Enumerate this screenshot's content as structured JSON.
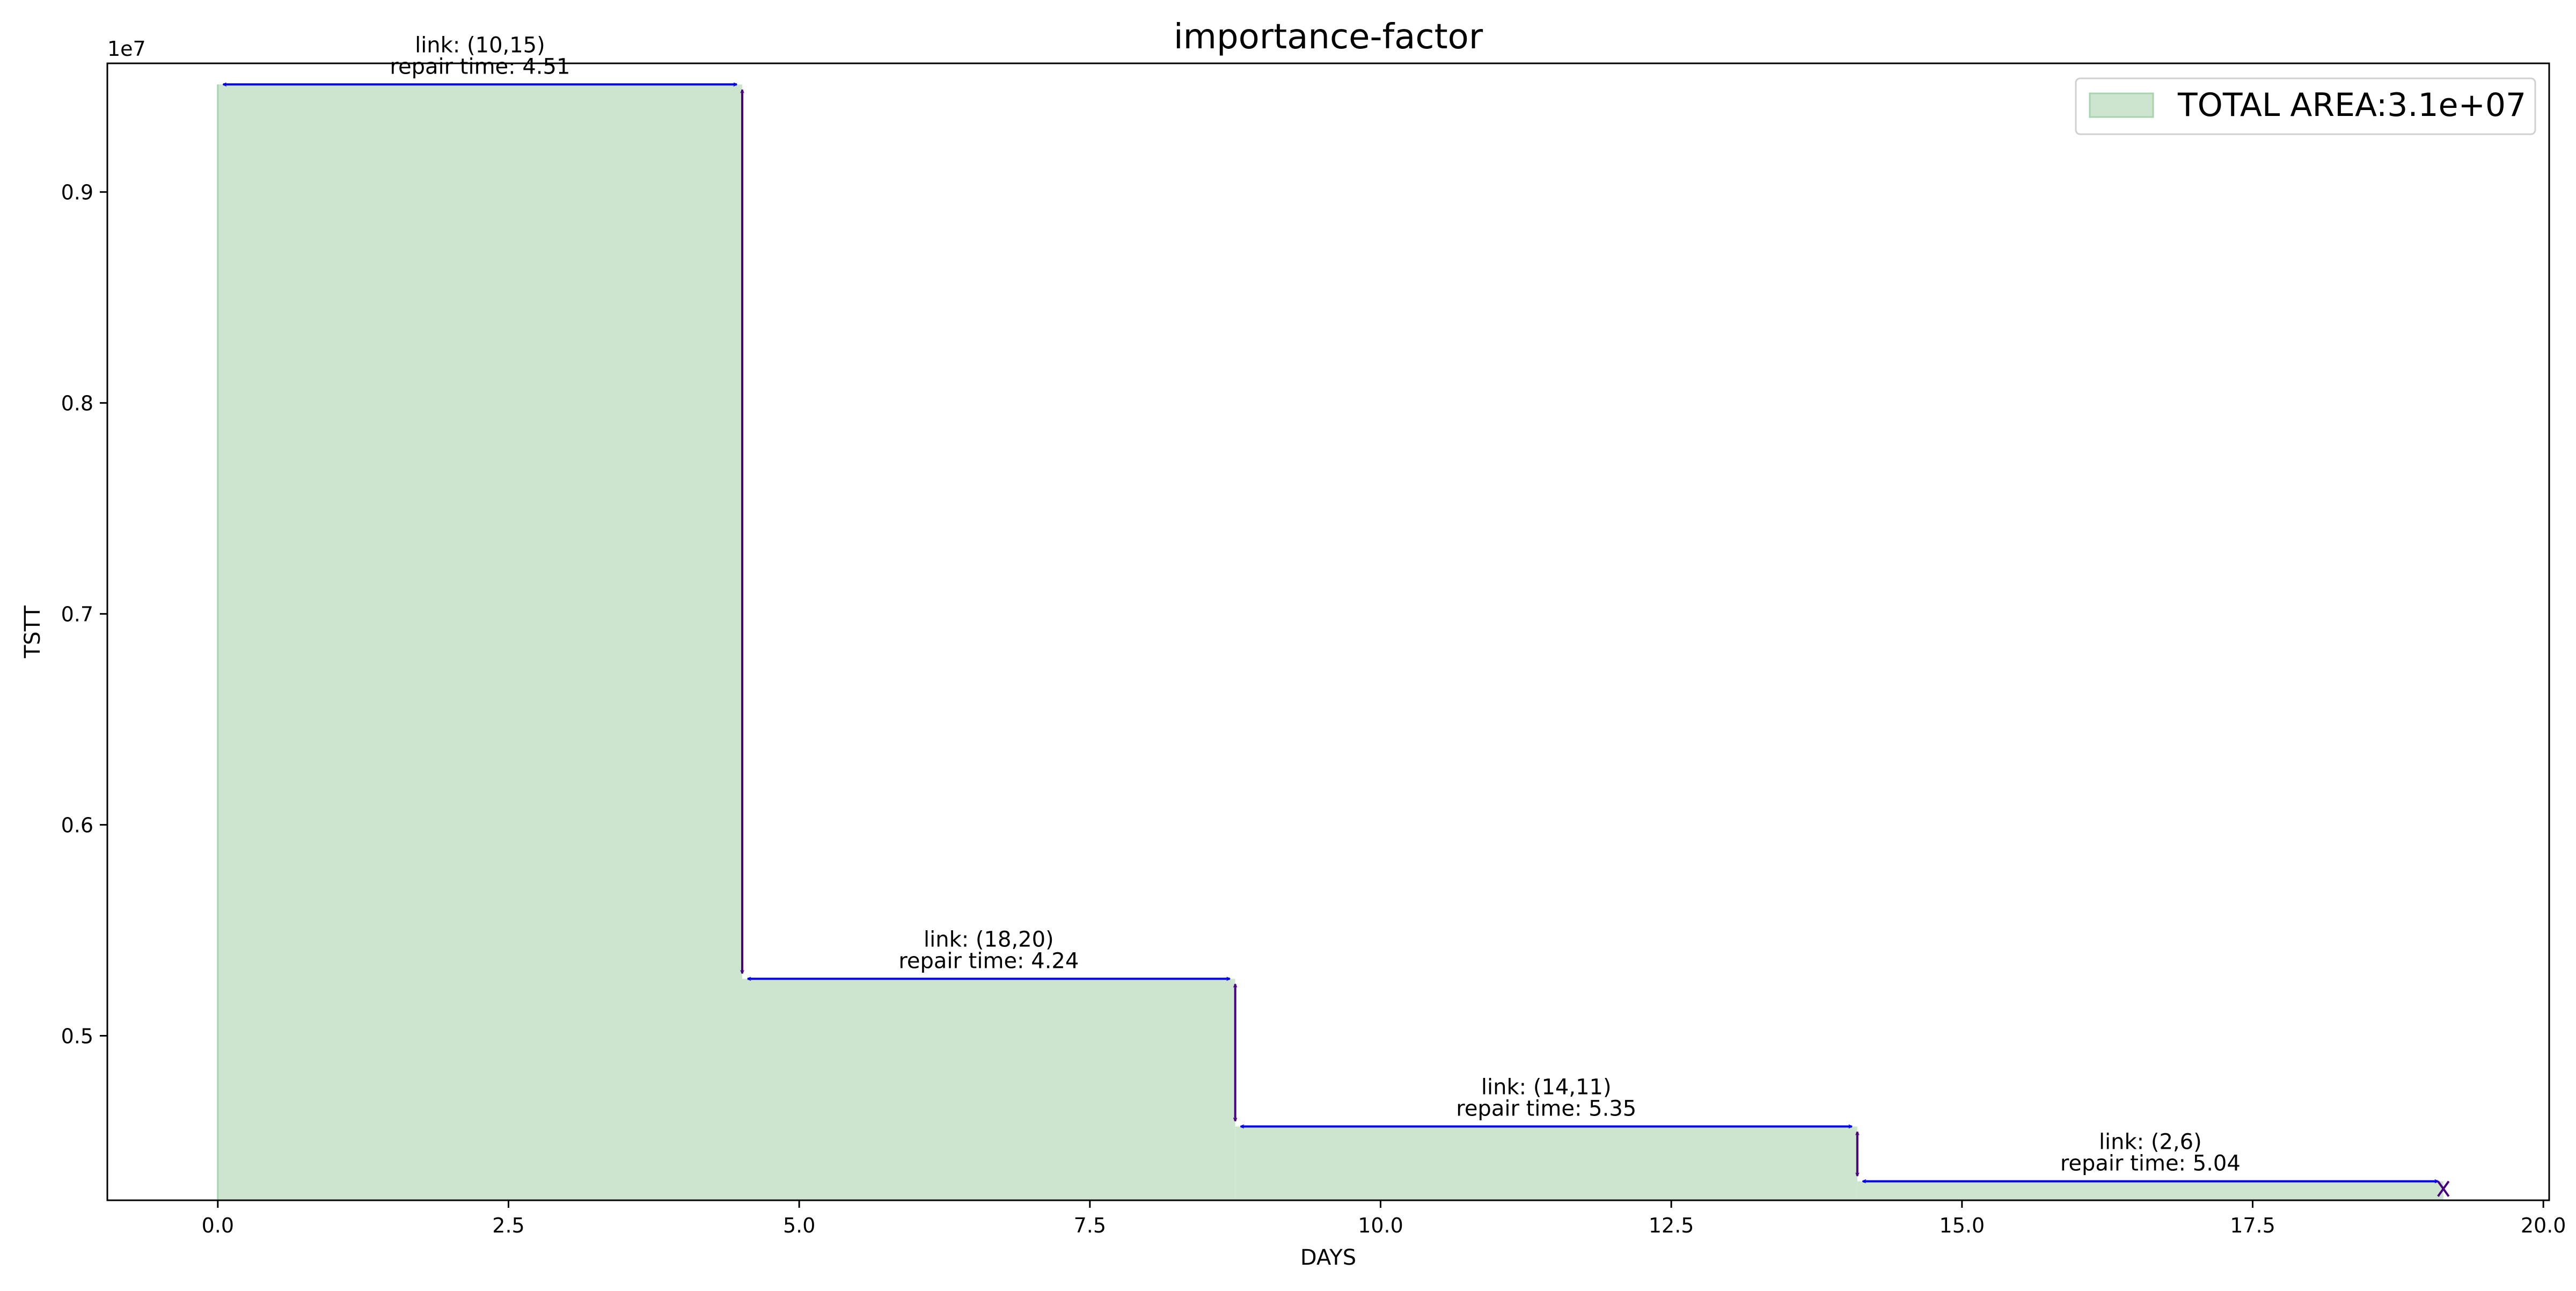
{
  "chart_data": {
    "type": "area",
    "title": "importance-factor",
    "xlabel": "DAYS",
    "ylabel": "TSTT",
    "y_offset_label": "1e7",
    "xlim": [
      -0.95,
      20.05
    ],
    "ylim": [
      0.422,
      0.961
    ],
    "y_scale_note": "y values in units of 1e7",
    "x_ticks": [
      0.0,
      2.5,
      5.0,
      7.5,
      10.0,
      12.5,
      15.0,
      17.5,
      20.0
    ],
    "x_tick_labels": [
      "0.0",
      "2.5",
      "5.0",
      "7.5",
      "10.0",
      "12.5",
      "15.0",
      "17.5",
      "20.0"
    ],
    "y_ticks": [
      0.5,
      0.6,
      0.7,
      0.8,
      0.9
    ],
    "y_tick_labels": [
      "0.5",
      "0.6",
      "0.7",
      "0.8",
      "0.9"
    ],
    "grid": false,
    "legend_position": "top-right",
    "series": [
      {
        "name": "TOTAL AREA:3.1e+07",
        "fill_color": "#cde5cf",
        "edge_color": "#a6d3ab",
        "steps": [
          {
            "x_start": 0.0,
            "x_end": 4.51,
            "y": 0.951
          },
          {
            "x_start": 4.51,
            "x_end": 8.75,
            "y": 0.527
          },
          {
            "x_start": 8.75,
            "x_end": 14.1,
            "y": 0.457
          },
          {
            "x_start": 14.1,
            "x_end": 19.14,
            "y": 0.431
          }
        ]
      }
    ],
    "annotations": [
      {
        "link": "link: (10,15)",
        "repair": "repair time: 4.51",
        "x_start": 0.0,
        "x_end": 4.51,
        "y": 0.951
      },
      {
        "link": "link: (18,20)",
        "repair": "repair time: 4.24",
        "x_start": 4.51,
        "x_end": 8.75,
        "y": 0.527
      },
      {
        "link": "link: (14,11)",
        "repair": "repair time: 5.35",
        "x_start": 8.75,
        "x_end": 14.1,
        "y": 0.457
      },
      {
        "link": "link: (2,6)",
        "repair": "repair time: 5.04",
        "x_start": 14.1,
        "x_end": 19.14,
        "y": 0.431
      }
    ],
    "drops": [
      {
        "x": 4.51,
        "y_from": 0.951,
        "y_to": 0.527
      },
      {
        "x": 8.75,
        "y_from": 0.527,
        "y_to": 0.457
      },
      {
        "x": 14.1,
        "y_from": 0.457,
        "y_to": 0.431
      }
    ],
    "end_marker": {
      "x": 19.14,
      "y": 0.431,
      "symbol": "x"
    },
    "colors": {
      "horizontal_arrow": "#0000ee",
      "vertical_arrow": "#4b0082",
      "axis": "#000000",
      "legend_border": "#cccccc"
    }
  }
}
